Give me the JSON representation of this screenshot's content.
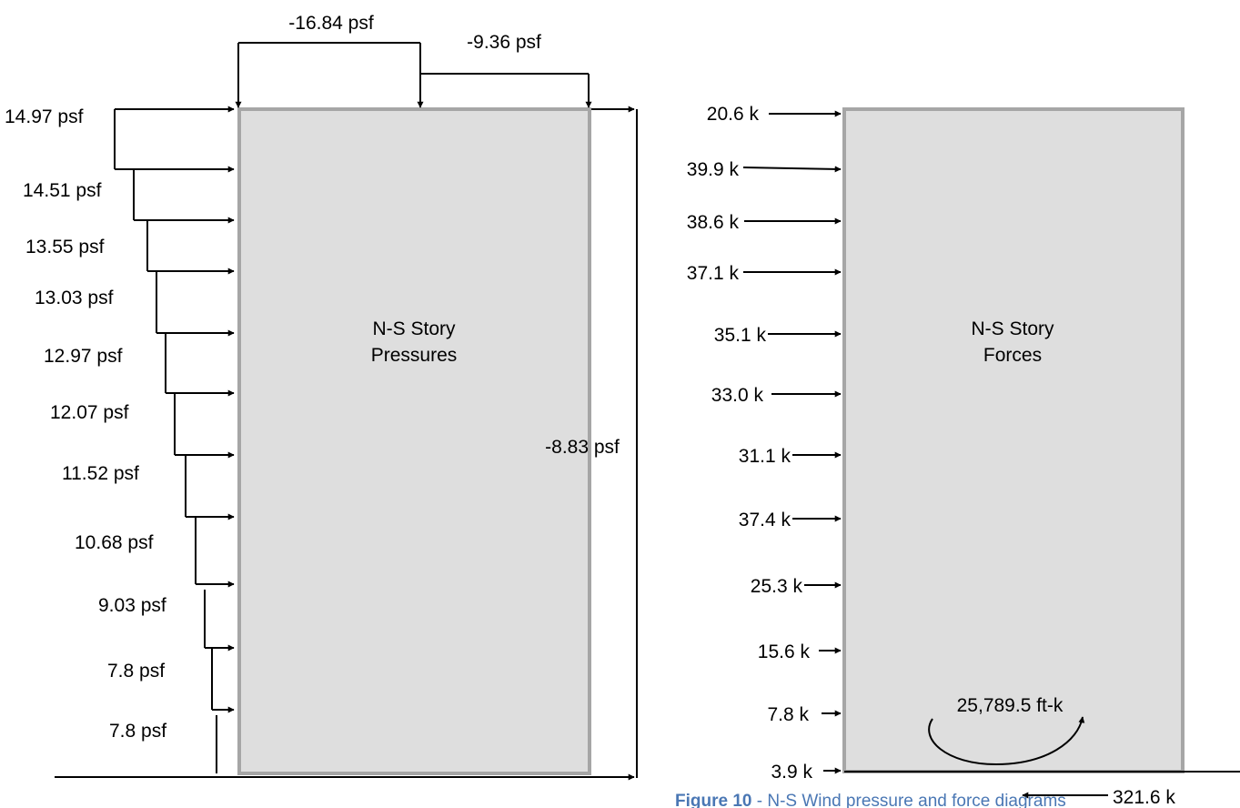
{
  "pressures_panel": {
    "title_line1": "N-S Story",
    "title_line2": "Pressures",
    "roof_windward": "-16.84 psf",
    "roof_leeward": "-9.36 psf",
    "leeward_wall": "-8.83 psf",
    "windward": [
      "14.97 psf",
      "14.51 psf",
      "13.55 psf",
      "13.03 psf",
      "12.97 psf",
      "12.07 psf",
      "11.52 psf",
      "10.68 psf",
      "9.03 psf",
      "7.8 psf",
      "7.8 psf"
    ]
  },
  "forces_panel": {
    "title_line1": "N-S Story",
    "title_line2": "Forces",
    "story_forces": [
      "20.6 k",
      "39.9 k",
      "38.6 k",
      "37.1 k",
      "35.1 k",
      "33.0 k",
      "31.1 k",
      "37.4 k",
      "25.3 k",
      "15.6 k",
      "7.8 k",
      "3.9 k"
    ],
    "moment": "25,789.5 ft-k",
    "base_shear": "321.6 k"
  },
  "caption": {
    "label": "Figure 10",
    "text": " - N-S Wind pressure and force diagrams"
  },
  "colors": {
    "box_fill": "#dedede",
    "box_stroke": "#a6a6a6",
    "caption": "#4a77b4"
  }
}
